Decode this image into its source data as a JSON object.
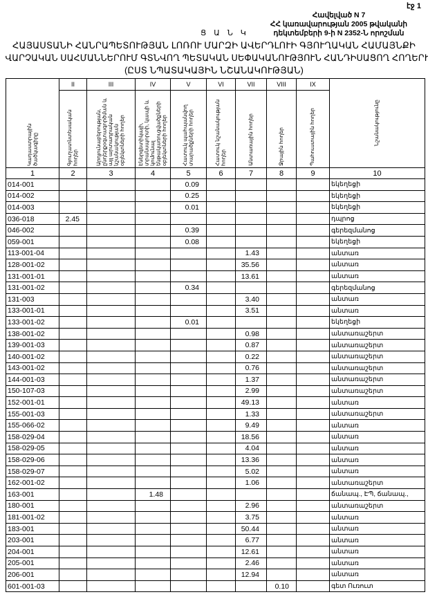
{
  "page_number": "էջ 1",
  "annex": {
    "line1": "Հավելված N 7",
    "line2": "ՀՀ կառավարության 2005 թվականի",
    "line3": "դեկտեմբերի 9-ի N 2352-Ն որոշման"
  },
  "list_label": "Ց Ա Ն Կ",
  "title": {
    "line1": "ՀԱՅԱՍՏԱՆԻ ՀԱՆՐԱՊԵՏՈՒԹՅԱՆ ԼՈՌՈՒ ՄԱՐԶԻ ԱՎԵՐԴԼՈՒԻ ԳՅՈՒՂԱԿԱՆ ՀԱՄԱՅՆՔԻ",
    "line2": "ՎԱՐՉԱԿԱՆ ՍԱՀՄԱՆՆԵՐՈՒՄ ԳՏՆՎՈՂ ՊԵՏԱԿԱՆ ՍԵՓԱԿԱՆՈՒԹՅՈՒՆ ՀԱՆԴԻՍԱՑՈՂ ՀՈՂԵՐԻ",
    "line3": "(ԸՍՏ ՆՊԱՏԱԿԱՅԻՆ ՆՇԱՆԱԿՈՒԹՅԱՆ)"
  },
  "table": {
    "roman": [
      "II",
      "III",
      "IV",
      "V",
      "VI",
      "VII",
      "VIII",
      "IX"
    ],
    "headers": [
      "Կադաստրային ծածկագիրը",
      "Գյուղատնտեսական հողեր",
      "Արդյունաբերության, ընդերքօգտագործման և այլ արտադրական նշանակության օբյեկտների հողեր",
      "Էներգետիկայի, տրանսպորտի, կապի և կոմունալ ենթակառուցվածքների օբյեկտների հողեր",
      "Հատուկ պահպանվող տարածքների հողեր",
      "Հատուկ նշանակության հողեր",
      "Անտառային հողեր",
      "Ջրային հողեր",
      "Պահուստային հողեր",
      "Նշանակությունը"
    ],
    "column_numbers": [
      "1",
      "2",
      "3",
      "4",
      "5",
      "6",
      "7",
      "8",
      "9",
      "10"
    ],
    "rows": [
      [
        "014-001",
        "",
        "",
        "",
        "0.09",
        "",
        "",
        "",
        "",
        "եկեղեցի"
      ],
      [
        "014-002",
        "",
        "",
        "",
        "0.25",
        "",
        "",
        "",
        "",
        "եկեղեցի"
      ],
      [
        "014-003",
        "",
        "",
        "",
        "0.01",
        "",
        "",
        "",
        "",
        "եկեղեցի"
      ],
      [
        "036-018",
        "2.45",
        "",
        "",
        "",
        "",
        "",
        "",
        "",
        "դպրոց"
      ],
      [
        "046-002",
        "",
        "",
        "",
        "0.39",
        "",
        "",
        "",
        "",
        "գերեզմանոց"
      ],
      [
        "059-001",
        "",
        "",
        "",
        "0.08",
        "",
        "",
        "",
        "",
        "եկեղեցի"
      ],
      [
        "113-001-04",
        "",
        "",
        "",
        "",
        "",
        "1.43",
        "",
        "",
        "անտառ"
      ],
      [
        "128-001-02",
        "",
        "",
        "",
        "",
        "",
        "35.56",
        "",
        "",
        "անտառ"
      ],
      [
        "131-001-01",
        "",
        "",
        "",
        "",
        "",
        "13.61",
        "",
        "",
        "անտառ"
      ],
      [
        "131-001-02",
        "",
        "",
        "",
        "0.34",
        "",
        "",
        "",
        "",
        "գերեզմանոց"
      ],
      [
        "131-003",
        "",
        "",
        "",
        "",
        "",
        "3.40",
        "",
        "",
        "անտառ"
      ],
      [
        "133-001-01",
        "",
        "",
        "",
        "",
        "",
        "3.51",
        "",
        "",
        "անտառ"
      ],
      [
        "133-001-02",
        "",
        "",
        "",
        "0.01",
        "",
        "",
        "",
        "",
        "եկեղեցի"
      ],
      [
        "138-001-02",
        "",
        "",
        "",
        "",
        "",
        "0.98",
        "",
        "",
        "անտառաշերտ"
      ],
      [
        "139-001-03",
        "",
        "",
        "",
        "",
        "",
        "0.87",
        "",
        "",
        "անտառաշերտ"
      ],
      [
        "140-001-02",
        "",
        "",
        "",
        "",
        "",
        "0.22",
        "",
        "",
        "անտառաշերտ"
      ],
      [
        "143-001-02",
        "",
        "",
        "",
        "",
        "",
        "0.76",
        "",
        "",
        "անտառաշերտ"
      ],
      [
        "144-001-03",
        "",
        "",
        "",
        "",
        "",
        "1.37",
        "",
        "",
        "անտառաշերտ"
      ],
      [
        "150-107-03",
        "",
        "",
        "",
        "",
        "",
        "2.99",
        "",
        "",
        "անտառաշերտ"
      ],
      [
        "152-001-01",
        "",
        "",
        "",
        "",
        "",
        "49.13",
        "",
        "",
        "անտառ"
      ],
      [
        "155-001-03",
        "",
        "",
        "",
        "",
        "",
        "1.33",
        "",
        "",
        "անտառաշերտ"
      ],
      [
        "155-066-02",
        "",
        "",
        "",
        "",
        "",
        "9.49",
        "",
        "",
        "անտառ"
      ],
      [
        "158-029-04",
        "",
        "",
        "",
        "",
        "",
        "18.56",
        "",
        "",
        "անտառ"
      ],
      [
        "158-029-05",
        "",
        "",
        "",
        "",
        "",
        "4.04",
        "",
        "",
        "անտառ"
      ],
      [
        "158-029-06",
        "",
        "",
        "",
        "",
        "",
        "13.36",
        "",
        "",
        "անտառ"
      ],
      [
        "158-029-07",
        "",
        "",
        "",
        "",
        "",
        "5.02",
        "",
        "",
        "անտառ"
      ],
      [
        "162-001-02",
        "",
        "",
        "",
        "",
        "",
        "1.06",
        "",
        "",
        "անտառաշերտ"
      ],
      [
        "163-001",
        "",
        "",
        "1.48",
        "",
        "",
        "",
        "",
        "",
        "ճանապ., ԷՊ, ճանապ.,"
      ],
      [
        "180-001",
        "",
        "",
        "",
        "",
        "",
        "2.96",
        "",
        "",
        "անտառաշերտ"
      ],
      [
        "181-001-02",
        "",
        "",
        "",
        "",
        "",
        "3.75",
        "",
        "",
        "անտառ"
      ],
      [
        "183-001",
        "",
        "",
        "",
        "",
        "",
        "50.44",
        "",
        "",
        "անտառ"
      ],
      [
        "203-001",
        "",
        "",
        "",
        "",
        "",
        "6.77",
        "",
        "",
        "անտառ"
      ],
      [
        "204-001",
        "",
        "",
        "",
        "",
        "",
        "12.61",
        "",
        "",
        "անտառ"
      ],
      [
        "205-001",
        "",
        "",
        "",
        "",
        "",
        "2.46",
        "",
        "",
        "անտառ"
      ],
      [
        "206-001",
        "",
        "",
        "",
        "",
        "",
        "12.94",
        "",
        "",
        "անտառ"
      ],
      [
        "601-001-03",
        "",
        "",
        "",
        "",
        "",
        "",
        "0.10",
        "",
        "գետ Ուռուտ"
      ]
    ]
  }
}
